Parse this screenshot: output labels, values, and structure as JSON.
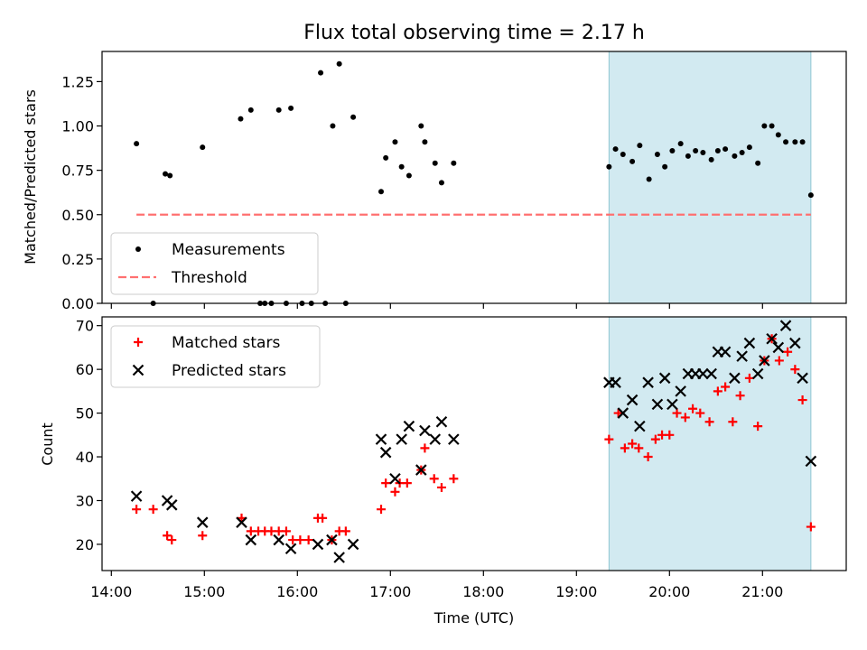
{
  "chart_data": {
    "title": "Flux total observing time = 2.17 h",
    "xlabel": "Time (UTC)",
    "x_unit": "hours UTC",
    "xlim": [
      13.9,
      21.9
    ],
    "x_ticks": [
      14,
      15,
      16,
      17,
      18,
      19,
      20,
      21
    ],
    "x_tick_labels": [
      "14:00",
      "15:00",
      "16:00",
      "17:00",
      "18:00",
      "19:00",
      "20:00",
      "21:00"
    ],
    "shaded_interval": {
      "x": [
        19.35,
        21.52
      ],
      "color": "#add8e6"
    },
    "panels": [
      {
        "type": "scatter",
        "ylabel": "Matched/Predicted stars",
        "ylim": [
          0,
          1.42
        ],
        "y_ticks": [
          0,
          0.25,
          0.5,
          0.75,
          1.0,
          1.25
        ],
        "y_tick_labels": [
          "0.00",
          "0.25",
          "0.50",
          "0.75",
          "1.00",
          "1.25"
        ],
        "legend": {
          "position": "lower-left",
          "entries": [
            "Measurements",
            "Threshold"
          ]
        },
        "series": [
          {
            "name": "Measurements",
            "marker": "dot",
            "color": "#000000",
            "points": [
              [
                14.27,
                0.9
              ],
              [
                14.45,
                0.0
              ],
              [
                14.58,
                0.73
              ],
              [
                14.63,
                0.72
              ],
              [
                14.98,
                0.88
              ],
              [
                15.39,
                1.04
              ],
              [
                15.5,
                1.09
              ],
              [
                15.6,
                0.0
              ],
              [
                15.65,
                0.0
              ],
              [
                15.72,
                0.0
              ],
              [
                15.8,
                1.09
              ],
              [
                15.93,
                1.1
              ],
              [
                15.88,
                0.0
              ],
              [
                16.05,
                0.0
              ],
              [
                16.15,
                0.0
              ],
              [
                16.25,
                1.3
              ],
              [
                16.3,
                0.0
              ],
              [
                16.38,
                1.0
              ],
              [
                16.45,
                1.35
              ],
              [
                16.6,
                1.05
              ],
              [
                16.52,
                0.0
              ],
              [
                16.9,
                0.63
              ],
              [
                16.95,
                0.82
              ],
              [
                17.05,
                0.91
              ],
              [
                17.12,
                0.77
              ],
              [
                17.2,
                0.72
              ],
              [
                17.33,
                1.0
              ],
              [
                17.37,
                0.91
              ],
              [
                17.48,
                0.79
              ],
              [
                17.55,
                0.68
              ],
              [
                17.68,
                0.79
              ],
              [
                19.35,
                0.77
              ],
              [
                19.42,
                0.87
              ],
              [
                19.5,
                0.84
              ],
              [
                19.6,
                0.8
              ],
              [
                19.68,
                0.89
              ],
              [
                19.78,
                0.7
              ],
              [
                19.87,
                0.84
              ],
              [
                19.95,
                0.77
              ],
              [
                20.03,
                0.86
              ],
              [
                20.12,
                0.9
              ],
              [
                20.2,
                0.83
              ],
              [
                20.28,
                0.86
              ],
              [
                20.36,
                0.85
              ],
              [
                20.45,
                0.81
              ],
              [
                20.52,
                0.86
              ],
              [
                20.6,
                0.87
              ],
              [
                20.7,
                0.83
              ],
              [
                20.78,
                0.85
              ],
              [
                20.86,
                0.88
              ],
              [
                20.95,
                0.79
              ],
              [
                21.02,
                1.0
              ],
              [
                21.1,
                1.0
              ],
              [
                21.17,
                0.95
              ],
              [
                21.25,
                0.91
              ],
              [
                21.35,
                0.91
              ],
              [
                21.43,
                0.91
              ],
              [
                21.52,
                0.61
              ]
            ]
          },
          {
            "name": "Threshold",
            "style": "dashed",
            "color": "#ff7070",
            "points": [
              [
                14.27,
                0.5
              ],
              [
                21.52,
                0.5
              ]
            ]
          }
        ]
      },
      {
        "type": "scatter",
        "ylabel": "Count",
        "ylim": [
          14,
          72
        ],
        "y_ticks": [
          20,
          30,
          40,
          50,
          60,
          70
        ],
        "y_tick_labels": [
          "20",
          "30",
          "40",
          "50",
          "60",
          "70"
        ],
        "legend": {
          "position": "top-left",
          "entries": [
            "Matched stars",
            "Predicted stars"
          ]
        },
        "series": [
          {
            "name": "Matched stars",
            "marker": "plus",
            "color": "#ff0000",
            "points": [
              [
                14.27,
                28
              ],
              [
                14.45,
                28
              ],
              [
                14.6,
                22
              ],
              [
                14.65,
                21
              ],
              [
                14.98,
                22
              ],
              [
                15.4,
                26
              ],
              [
                15.5,
                23
              ],
              [
                15.58,
                23
              ],
              [
                15.65,
                23
              ],
              [
                15.72,
                23
              ],
              [
                15.8,
                23
              ],
              [
                15.88,
                23
              ],
              [
                15.95,
                21
              ],
              [
                16.03,
                21
              ],
              [
                16.12,
                21
              ],
              [
                16.22,
                26
              ],
              [
                16.27,
                26
              ],
              [
                16.37,
                21
              ],
              [
                16.45,
                23
              ],
              [
                16.52,
                23
              ],
              [
                16.9,
                28
              ],
              [
                16.95,
                34
              ],
              [
                17.05,
                32
              ],
              [
                17.1,
                34
              ],
              [
                17.18,
                34
              ],
              [
                17.33,
                37
              ],
              [
                17.37,
                42
              ],
              [
                17.47,
                35
              ],
              [
                17.55,
                33
              ],
              [
                17.68,
                35
              ],
              [
                19.35,
                44
              ],
              [
                19.45,
                50
              ],
              [
                19.52,
                42
              ],
              [
                19.6,
                43
              ],
              [
                19.67,
                42
              ],
              [
                19.77,
                40
              ],
              [
                19.85,
                44
              ],
              [
                19.92,
                45
              ],
              [
                20.0,
                45
              ],
              [
                20.08,
                50
              ],
              [
                20.17,
                49
              ],
              [
                20.25,
                51
              ],
              [
                20.33,
                50
              ],
              [
                20.43,
                48
              ],
              [
                20.52,
                55
              ],
              [
                20.6,
                56
              ],
              [
                20.68,
                48
              ],
              [
                20.76,
                54
              ],
              [
                20.86,
                58
              ],
              [
                20.95,
                47
              ],
              [
                21.02,
                62
              ],
              [
                21.1,
                67
              ],
              [
                21.18,
                62
              ],
              [
                21.27,
                64
              ],
              [
                21.35,
                60
              ],
              [
                21.43,
                53
              ],
              [
                21.52,
                24
              ]
            ]
          },
          {
            "name": "Predicted stars",
            "marker": "x",
            "color": "#000000",
            "points": [
              [
                14.27,
                31
              ],
              [
                14.6,
                30
              ],
              [
                14.65,
                29
              ],
              [
                14.98,
                25
              ],
              [
                15.4,
                25
              ],
              [
                15.5,
                21
              ],
              [
                15.8,
                21
              ],
              [
                15.93,
                19
              ],
              [
                16.22,
                20
              ],
              [
                16.37,
                21
              ],
              [
                16.45,
                17
              ],
              [
                16.6,
                20
              ],
              [
                16.9,
                44
              ],
              [
                16.95,
                41
              ],
              [
                17.05,
                35
              ],
              [
                17.12,
                44
              ],
              [
                17.2,
                47
              ],
              [
                17.33,
                37
              ],
              [
                17.37,
                46
              ],
              [
                17.48,
                44
              ],
              [
                17.55,
                48
              ],
              [
                17.68,
                44
              ],
              [
                19.35,
                57
              ],
              [
                19.42,
                57
              ],
              [
                19.5,
                50
              ],
              [
                19.6,
                53
              ],
              [
                19.68,
                47
              ],
              [
                19.77,
                57
              ],
              [
                19.87,
                52
              ],
              [
                19.95,
                58
              ],
              [
                20.03,
                52
              ],
              [
                20.12,
                55
              ],
              [
                20.2,
                59
              ],
              [
                20.28,
                59
              ],
              [
                20.36,
                59
              ],
              [
                20.45,
                59
              ],
              [
                20.52,
                64
              ],
              [
                20.6,
                64
              ],
              [
                20.7,
                58
              ],
              [
                20.78,
                63
              ],
              [
                20.86,
                66
              ],
              [
                20.95,
                59
              ],
              [
                21.02,
                62
              ],
              [
                21.1,
                67
              ],
              [
                21.17,
                65
              ],
              [
                21.25,
                70
              ],
              [
                21.35,
                66
              ],
              [
                21.43,
                58
              ],
              [
                21.52,
                39
              ]
            ]
          }
        ]
      }
    ]
  }
}
